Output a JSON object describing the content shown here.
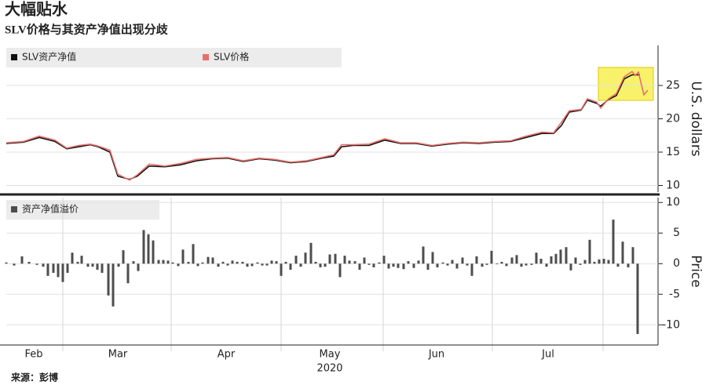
{
  "chart_data": [
    {
      "type": "line",
      "title": "大幅贴水",
      "subtitle": "SLV价格与其资产净值出现分歧",
      "y_axis_label": "U.S. dollars",
      "xlim": [
        0,
        166
      ],
      "ylim": [
        9,
        31
      ],
      "yticks": [
        10,
        15,
        20,
        25
      ],
      "grid": true,
      "series": [
        {
          "name": "SLV资产净值",
          "color": "#111111",
          "x": [
            0,
            4.4,
            8.4,
            12.4,
            15.4,
            18.4,
            21.4,
            23.4,
            26.4,
            28.4,
            31.4,
            33.4,
            36.4,
            40.4,
            44.4,
            48.4,
            52.4,
            56.4,
            60.4,
            64.4,
            68.4,
            72.4,
            76.4,
            80.4,
            83.4,
            85.4,
            88.4,
            92.4,
            96.4,
            100.4,
            104.4,
            108.4,
            112.4,
            116.4,
            120.4,
            124.4,
            128.4,
            132.4,
            136.4,
            139.4,
            141.4,
            143.4,
            146.4,
            148,
            150.4,
            151.4,
            153.4,
            155.4,
            157.4,
            159.4,
            161.4
          ],
          "values": [
            16.3,
            16.5,
            17.2,
            16.6,
            15.5,
            15.8,
            16.1,
            15.8,
            15.0,
            11.4,
            10.9,
            11.4,
            12.9,
            12.8,
            13.1,
            13.7,
            14.0,
            14.1,
            13.6,
            14.0,
            13.8,
            13.4,
            13.6,
            14.1,
            14.4,
            15.8,
            16.0,
            16.0,
            16.8,
            16.3,
            16.3,
            15.9,
            16.2,
            16.4,
            16.3,
            16.5,
            16.6,
            17.2,
            17.8,
            17.8,
            19.0,
            21.0,
            21.3,
            22.8,
            22.3,
            21.9,
            22.9,
            23.5,
            26.0,
            26.6,
            26.6
          ]
        },
        {
          "name": "SLV价格",
          "color": "#e8706b",
          "x": [
            0,
            4.4,
            8.4,
            12.4,
            15.4,
            18.4,
            21.4,
            23.4,
            26.4,
            28.4,
            31.4,
            33.4,
            36.4,
            40.4,
            44.4,
            48.4,
            52.4,
            56.4,
            60.4,
            64.4,
            68.4,
            72.4,
            76.4,
            80.4,
            83.4,
            85.4,
            88.4,
            92.4,
            96.4,
            100.4,
            104.4,
            108.4,
            112.4,
            116.4,
            120.4,
            124.4,
            128.4,
            132.4,
            136.4,
            139.4,
            141.4,
            143.4,
            146.4,
            148,
            150.4,
            151.4,
            153.4,
            155.4,
            157.4,
            159.4,
            160.2,
            161,
            162.4,
            163.4
          ],
          "values": [
            16.4,
            16.6,
            17.4,
            16.8,
            15.6,
            16.0,
            16.2,
            15.9,
            15.3,
            11.7,
            10.8,
            11.6,
            13.2,
            12.9,
            13.3,
            13.9,
            14.1,
            14.2,
            13.7,
            14.1,
            13.9,
            13.5,
            13.7,
            14.2,
            14.6,
            16.1,
            16.1,
            16.2,
            17.0,
            16.4,
            16.4,
            16.0,
            16.3,
            16.5,
            16.4,
            16.6,
            16.7,
            17.4,
            18.0,
            17.9,
            19.5,
            21.2,
            21.4,
            23.0,
            22.5,
            21.6,
            23.0,
            23.8,
            26.3,
            27.1,
            26.5,
            27.0,
            23.6,
            24.3
          ]
        }
      ]
    },
    {
      "type": "bar",
      "y_axis_label": "Price",
      "xlim": [
        0,
        166
      ],
      "ylim": [
        -13.3,
        10.8
      ],
      "yticks": [
        10,
        5,
        0,
        -5,
        -10
      ],
      "grid": true,
      "xgrid": [
        14.4,
        42,
        70,
        96,
        123.8,
        152
      ],
      "xticks": [
        {
          "value": 7,
          "label": "Feb"
        },
        {
          "value": 28.4,
          "label": "Mar"
        },
        {
          "value": 56,
          "label": "Apr"
        },
        {
          "value": 82.4,
          "label": "May"
        },
        {
          "value": 109.6,
          "label": "Jun"
        },
        {
          "value": 138,
          "label": "Jul"
        }
      ],
      "year_label": "2020",
      "series": [
        {
          "name": "资产净值溢价",
          "color": "#4d4d4d",
          "x": [
            0,
            2,
            4,
            5.8,
            7.8,
            9.4,
            10.6,
            12,
            13.2,
            14.4,
            15.6,
            16.8,
            18.2,
            19.2,
            20.8,
            22,
            23.2,
            24.4,
            26,
            27.2,
            28.6,
            29.8,
            31,
            32.4,
            33.6,
            35,
            36.2,
            37.4,
            38.8,
            40,
            41.2,
            42.4,
            43.8,
            45,
            46.4,
            47.6,
            48.8,
            50,
            51.4,
            52.6,
            54,
            55.2,
            56.4,
            57.6,
            58.8,
            60.2,
            61.4,
            62.6,
            64,
            65.2,
            66.4,
            67.6,
            68.8,
            70,
            71.2,
            72.4,
            73.8,
            75,
            76.2,
            77.6,
            78.8,
            80,
            81.2,
            82.4,
            83.8,
            85,
            86.2,
            87.4,
            88.8,
            90,
            91.2,
            92.4,
            93.6,
            95,
            96.2,
            97.4,
            98.6,
            99.8,
            101.2,
            102.4,
            103.8,
            105,
            106.2,
            107.4,
            108.6,
            109.8,
            111.2,
            112.4,
            113.6,
            114.8,
            116.2,
            117.4,
            118.6,
            119.8,
            121.2,
            122.4,
            123.6,
            125,
            126.2,
            127.4,
            128.8,
            130,
            131.2,
            132.4,
            133.8,
            135,
            136.2,
            137.6,
            138.8,
            140,
            141.2,
            142.6,
            143.8,
            145,
            146.2,
            147.4,
            148.6,
            149.8,
            151,
            152.2,
            153.4,
            154.6,
            155.8,
            157,
            158.4,
            159.6,
            160.8
          ],
          "values": [
            0.2,
            -0.3,
            1.2,
            0.3,
            -0.2,
            -0.5,
            -2.0,
            -1.5,
            -2.2,
            -3.0,
            -1.5,
            1.8,
            0.3,
            1.3,
            -0.5,
            -0.5,
            -1.0,
            -1.5,
            -5.2,
            -7.0,
            -0.5,
            2.2,
            -3.2,
            0.4,
            -1.2,
            5.5,
            4.8,
            3.8,
            0.6,
            0.6,
            0.5,
            0.2,
            -0.4,
            2.3,
            0.3,
            3.2,
            -0.4,
            0.2,
            1.1,
            1.0,
            -0.5,
            0.3,
            -0.3,
            0.5,
            0.3,
            0.3,
            -0.5,
            -0.4,
            0.2,
            -0.3,
            -0.3,
            0.5,
            0.4,
            -2.0,
            0.3,
            -1.0,
            1.3,
            -0.5,
            1.8,
            3.4,
            0.3,
            -0.6,
            -0.5,
            1.5,
            1.6,
            -2.2,
            1.3,
            0.5,
            0.4,
            -1.0,
            1.0,
            -0.2,
            -0.6,
            0.2,
            1.3,
            -0.8,
            -0.5,
            -0.7,
            -0.9,
            0.4,
            -0.7,
            0.5,
            2.8,
            -1.0,
            1.9,
            -0.6,
            0.2,
            -0.3,
            0.6,
            -0.8,
            1.0,
            -0.3,
            -2.0,
            1.2,
            -0.5,
            -0.2,
            2.1,
            -0.1,
            0.3,
            -0.4,
            1.0,
            1.4,
            -0.5,
            -0.3,
            -0.2,
            1.8,
            0.8,
            -0.5,
            1.2,
            1.6,
            2.3,
            2.7,
            -1.1,
            1.0,
            -0.2,
            0.6,
            3.9,
            0.3,
            0.7,
            0.8,
            0.6,
            7.2,
            -0.5,
            3.6,
            -0.6,
            2.7,
            -11.5
          ]
        }
      ]
    }
  ],
  "source": "来源：彭博"
}
